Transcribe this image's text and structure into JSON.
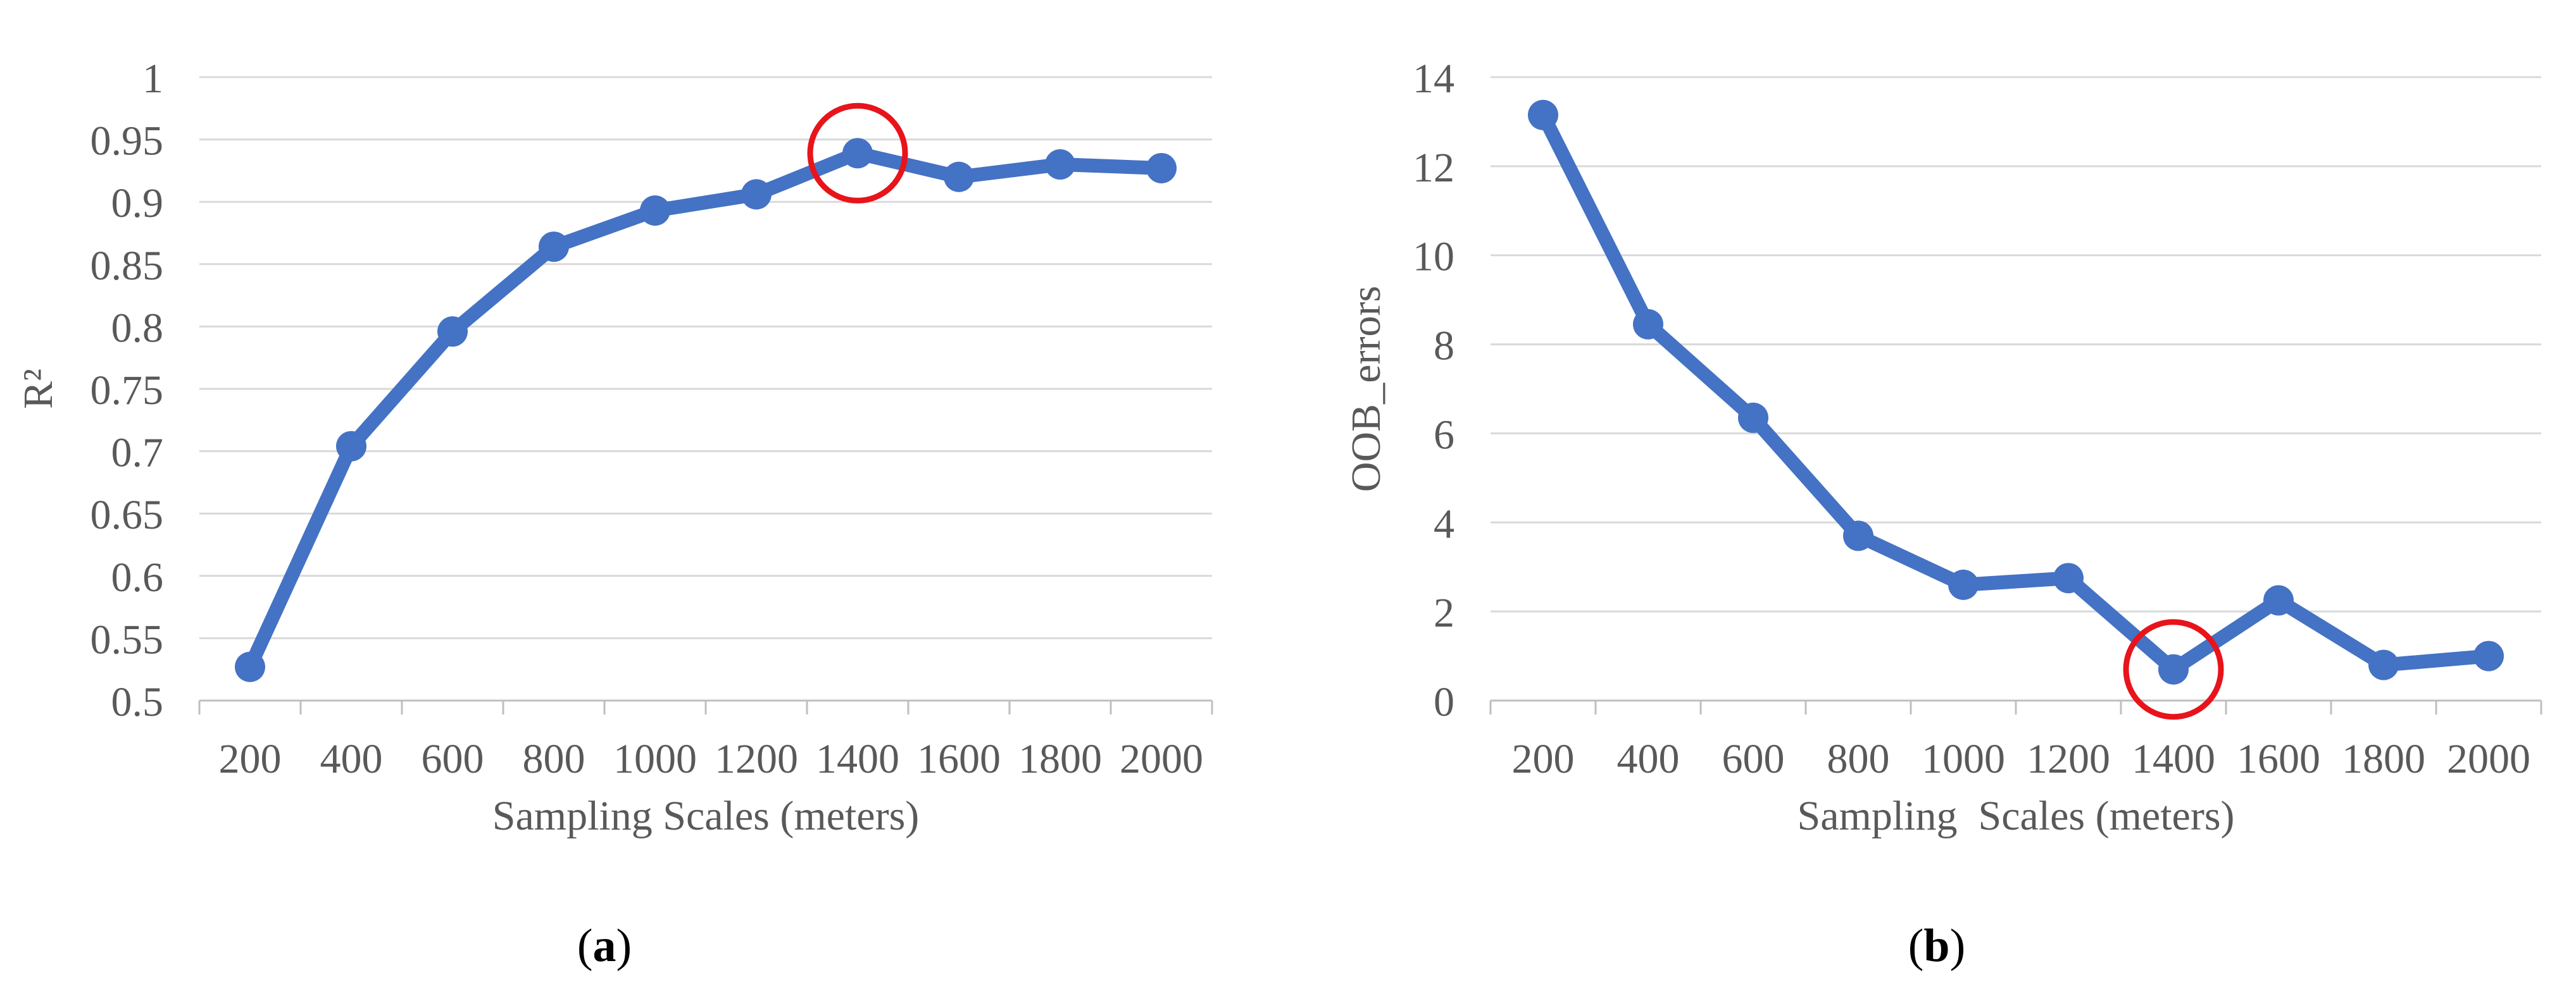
{
  "chart_data": [
    {
      "type": "line",
      "xlabel": "Sampling Scales (meters)",
      "ylabel": "R²",
      "categories": [
        "200",
        "400",
        "600",
        "800",
        "1000",
        "1200",
        "1400",
        "1600",
        "1800",
        "2000"
      ],
      "y_ticks": [
        "0.5",
        "0.55",
        "0.6",
        "0.65",
        "0.7",
        "0.75",
        "0.8",
        "0.85",
        "0.9",
        "0.95",
        "1"
      ],
      "ylim": [
        0.5,
        1
      ],
      "grid": true,
      "line_color": "#4472C4",
      "highlight_color": "#E8141B",
      "highlight_category": "1400",
      "series": [
        {
          "values": [
            0.527,
            0.704,
            0.796,
            0.864,
            0.893,
            0.906,
            0.939,
            0.92,
            0.93,
            0.927
          ]
        }
      ],
      "caption": "(a)"
    },
    {
      "type": "line",
      "xlabel": "Sampling  Scales (meters)",
      "ylabel": "OOB_errors",
      "categories": [
        "200",
        "400",
        "600",
        "800",
        "1000",
        "1200",
        "1400",
        "1600",
        "1800",
        "2000"
      ],
      "y_ticks": [
        "0",
        "2",
        "4",
        "6",
        "8",
        "10",
        "12",
        "14"
      ],
      "ylim": [
        0,
        14
      ],
      "grid": true,
      "line_color": "#4472C4",
      "highlight_color": "#E8141B",
      "highlight_category": "1400",
      "series": [
        {
          "values": [
            13.15,
            8.45,
            6.35,
            3.7,
            2.6,
            2.75,
            0.7,
            2.25,
            0.8,
            1.0
          ]
        }
      ],
      "caption": "(b)"
    }
  ]
}
